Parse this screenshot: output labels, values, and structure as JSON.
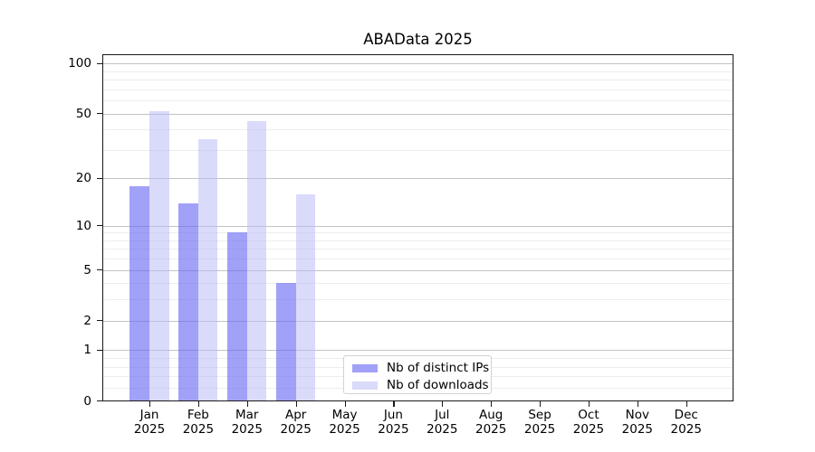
{
  "chart_data": {
    "type": "bar",
    "title": "ABAData 2025",
    "categories": [
      "Jan 2025",
      "Feb 2025",
      "Mar 2025",
      "Apr 2025",
      "May 2025",
      "Jun 2025",
      "Jul 2025",
      "Aug 2025",
      "Sep 2025",
      "Oct 2025",
      "Nov 2025",
      "Dec 2025"
    ],
    "series": [
      {
        "name": "Nb of distinct IPs",
        "color": "#6868f3",
        "alpha": 0.62,
        "slug": "distinct-ips",
        "values": [
          18,
          14,
          9,
          4,
          0,
          0,
          0,
          0,
          0,
          0,
          0,
          0
        ]
      },
      {
        "name": "Nb of downloads",
        "color": "#b9b9f8",
        "alpha": 0.52,
        "slug": "downloads",
        "values": [
          52,
          35,
          45,
          16,
          0,
          0,
          0,
          0,
          0,
          0,
          0,
          0
        ]
      }
    ],
    "xlabel": "",
    "ylabel": "",
    "yscale": "log(1+y)",
    "y_ticks": [
      0,
      1,
      2,
      5,
      10,
      20,
      50,
      100
    ],
    "y_minor_gridlines": [
      0.2,
      0.4,
      0.6,
      0.8,
      3,
      4,
      6,
      7,
      8,
      9,
      30,
      40,
      60,
      70,
      80,
      90
    ],
    "ylim": [
      0,
      114
    ],
    "grid": "both",
    "legend_position": "lower center",
    "bar_width_fraction": 0.4
  }
}
